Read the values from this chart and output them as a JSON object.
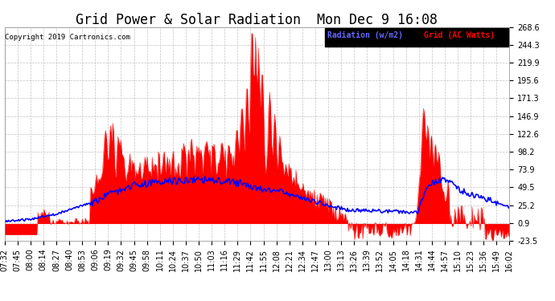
{
  "title": "Grid Power & Solar Radiation  Mon Dec 9 16:08",
  "copyright": "Copyright 2019 Cartronics.com",
  "legend_labels": [
    "Radiation (w/m2)",
    "Grid (AC Watts)"
  ],
  "background_color": "#ffffff",
  "plot_bg": "#ffffff",
  "grid_color": "#bbbbbb",
  "y_ticks": [
    -23.5,
    0.9,
    25.2,
    49.5,
    73.9,
    98.2,
    122.6,
    146.9,
    171.3,
    195.6,
    219.9,
    244.3,
    268.6
  ],
  "x_labels": [
    "07:32",
    "07:45",
    "08:00",
    "08:14",
    "08:27",
    "08:40",
    "08:53",
    "09:06",
    "09:19",
    "09:32",
    "09:45",
    "09:58",
    "10:11",
    "10:24",
    "10:37",
    "10:50",
    "11:03",
    "11:16",
    "11:29",
    "11:42",
    "11:55",
    "12:08",
    "12:21",
    "12:34",
    "12:47",
    "13:00",
    "13:13",
    "13:26",
    "13:39",
    "13:52",
    "14:05",
    "14:18",
    "14:31",
    "14:44",
    "14:57",
    "15:10",
    "15:23",
    "15:36",
    "15:49",
    "16:02"
  ],
  "ylim": [
    -23.5,
    268.6
  ],
  "title_fontsize": 12,
  "tick_fontsize": 7,
  "radiation_color": "#0000ff",
  "grid_power_color": "#ff0000"
}
